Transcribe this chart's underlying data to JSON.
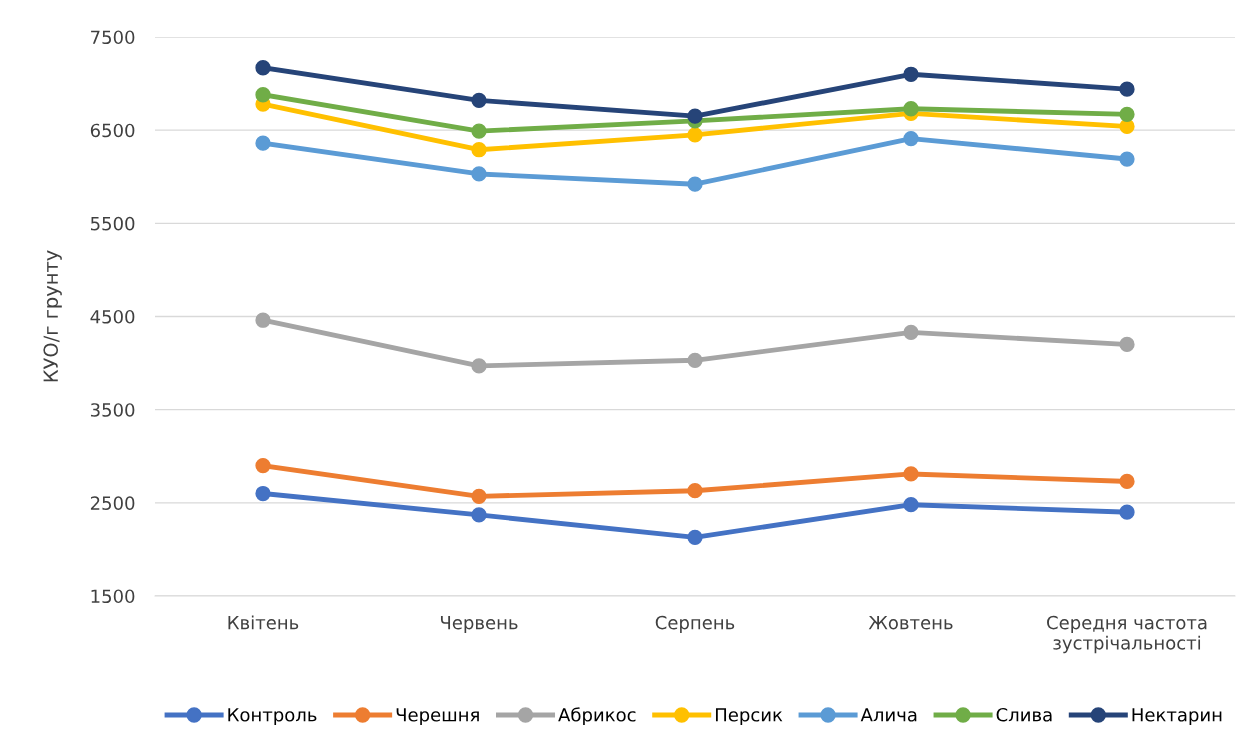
{
  "chart_data": {
    "type": "line",
    "ylabel": "КУО/г грунту",
    "categories": [
      "Квітень",
      "Червень",
      "Серпень",
      "Жовтень",
      "Середня частота\nзустрічальності"
    ],
    "series": [
      {
        "name": "Контроль",
        "color": "#4472c4",
        "values": [
          2600,
          2370,
          2130,
          2480,
          2400
        ]
      },
      {
        "name": "Черешня",
        "color": "#ed7d31",
        "values": [
          2900,
          2570,
          2630,
          2810,
          2730
        ]
      },
      {
        "name": "Абрикос",
        "color": "#a5a5a5",
        "values": [
          4460,
          3970,
          4030,
          4330,
          4200
        ]
      },
      {
        "name": "Персик",
        "color": "#ffc000",
        "values": [
          6780,
          6290,
          6450,
          6680,
          6540
        ]
      },
      {
        "name": "Алича",
        "color": "#5b9bd5",
        "values": [
          6360,
          6030,
          5920,
          6410,
          6190
        ]
      },
      {
        "name": "Слива",
        "color": "#70ad47",
        "values": [
          6880,
          6490,
          6600,
          6730,
          6670
        ]
      },
      {
        "name": "Нектарин",
        "color": "#264478",
        "values": [
          7170,
          6820,
          6650,
          7100,
          6940
        ]
      }
    ],
    "ylim": [
      1500,
      7500
    ],
    "yticks": [
      1500,
      2500,
      3500,
      4500,
      5500,
      6500,
      7500
    ],
    "grid": "y",
    "legend": "bottom",
    "marker": "circle",
    "line_style": "solid"
  }
}
